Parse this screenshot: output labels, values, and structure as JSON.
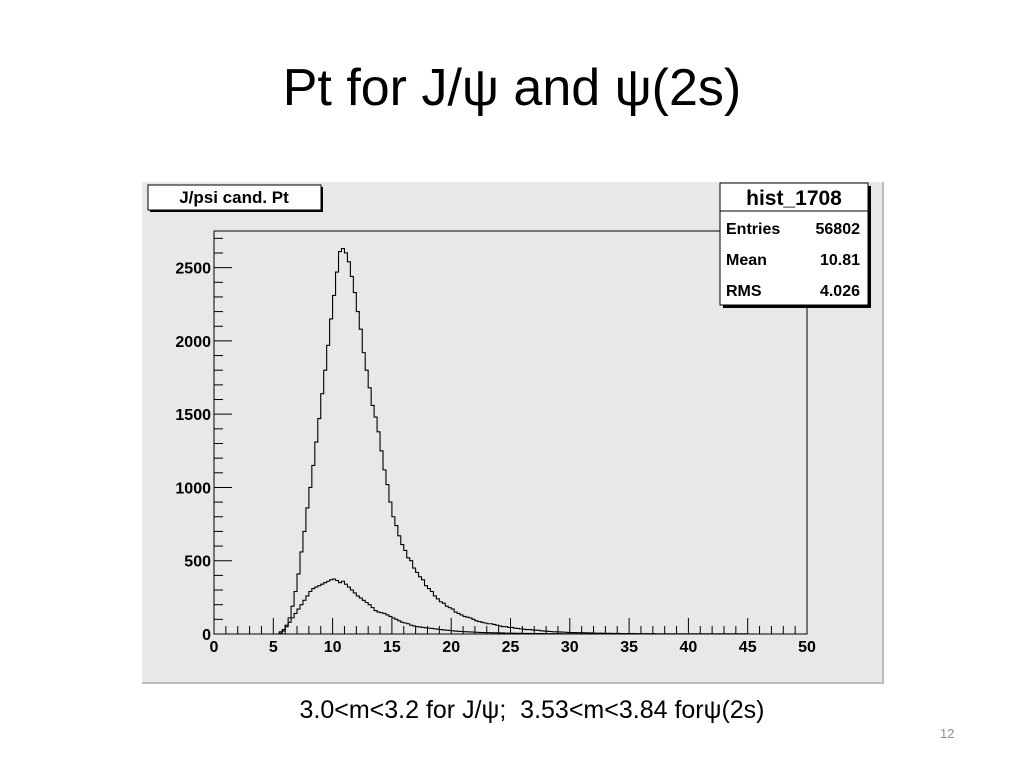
{
  "slide": {
    "title": "Pt  for J/ψ and ψ(2s)",
    "caption_part1": "3.0<m<3.2 for J/ψ;",
    "caption_part2": "  3.53<m<3.84 forψ(2s)",
    "page_number": "12"
  },
  "chart_data": {
    "type": "histogram",
    "title": "J/psi cand. Pt",
    "xlabel": "",
    "ylabel": "",
    "xlim": [
      0,
      50
    ],
    "ylim": [
      0,
      2750
    ],
    "x_ticks": [
      0,
      5,
      10,
      15,
      20,
      25,
      30,
      35,
      40,
      45,
      50
    ],
    "y_ticks": [
      0,
      500,
      1000,
      1500,
      2000,
      2500
    ],
    "grid": false,
    "stats_box": {
      "name": "hist_1708",
      "rows": [
        {
          "label": "Entries",
          "value": "56802"
        },
        {
          "label": "Mean",
          "value": "10.81"
        },
        {
          "label": "RMS",
          "value": "4.026"
        }
      ]
    },
    "series": [
      {
        "bin_width": 0.25,
        "x_start": 0,
        "values": [
          0,
          0,
          0,
          0,
          0,
          0,
          0,
          0,
          0,
          0,
          0,
          0,
          0,
          0,
          0,
          0,
          0,
          0,
          0,
          0,
          0,
          0,
          15,
          30,
          60,
          110,
          190,
          290,
          410,
          560,
          700,
          860,
          1000,
          1150,
          1310,
          1470,
          1640,
          1800,
          1970,
          2150,
          2310,
          2470,
          2610,
          2630,
          2600,
          2540,
          2440,
          2330,
          2200,
          2080,
          1920,
          1800,
          1680,
          1560,
          1480,
          1380,
          1250,
          1120,
          1020,
          900,
          800,
          740,
          670,
          610,
          570,
          520,
          500,
          450,
          420,
          390,
          370,
          330,
          310,
          290,
          260,
          240,
          220,
          210,
          190,
          180,
          170,
          150,
          140,
          130,
          120,
          115,
          110,
          100,
          90,
          85,
          80,
          75,
          70,
          70,
          65,
          60,
          55,
          50,
          50,
          45,
          45,
          40,
          38,
          35,
          33,
          30,
          30,
          28,
          26,
          25,
          22,
          20,
          18,
          17,
          15,
          15,
          14,
          13,
          12,
          11,
          10,
          10,
          9,
          9,
          8,
          8,
          7,
          7,
          6,
          6,
          6,
          5,
          5,
          5,
          4,
          4,
          4,
          3,
          3,
          3,
          3,
          3,
          2,
          2,
          2,
          2,
          2,
          2,
          2,
          1,
          1,
          1,
          1,
          1,
          1,
          1,
          1,
          1,
          1,
          1,
          1,
          1,
          1,
          1,
          1,
          1,
          1,
          1,
          1,
          1,
          1,
          1,
          1,
          1,
          1,
          1,
          1,
          1,
          1,
          1,
          0,
          0,
          0,
          0,
          0,
          0,
          0,
          0,
          0,
          0,
          0,
          0,
          0,
          0,
          0,
          0,
          0,
          0,
          0,
          0
        ]
      },
      {
        "bin_width": 0.25,
        "x_start": 0,
        "values": [
          0,
          0,
          0,
          0,
          0,
          0,
          0,
          0,
          0,
          0,
          0,
          0,
          0,
          0,
          0,
          0,
          0,
          0,
          0,
          0,
          0,
          0,
          5,
          20,
          50,
          80,
          110,
          140,
          170,
          200,
          230,
          260,
          290,
          310,
          320,
          330,
          340,
          350,
          360,
          370,
          375,
          365,
          350,
          360,
          340,
          320,
          300,
          280,
          260,
          245,
          230,
          215,
          200,
          180,
          160,
          150,
          145,
          140,
          130,
          120,
          110,
          100,
          90,
          80,
          75,
          70,
          60,
          55,
          50,
          48,
          45,
          42,
          40,
          38,
          35,
          33,
          30,
          28,
          26,
          24,
          22,
          20,
          18,
          17,
          16,
          15,
          14,
          13,
          12,
          11,
          10,
          10,
          9,
          9,
          8,
          8,
          7,
          7,
          6,
          6,
          6,
          5,
          5,
          5,
          4,
          4,
          4,
          3,
          3,
          3,
          3,
          2,
          2,
          2,
          2,
          2,
          2,
          1,
          1,
          1,
          1,
          1,
          1,
          1,
          1,
          1,
          1,
          1,
          1,
          1,
          0,
          0,
          0,
          0,
          0,
          0,
          0,
          0,
          0,
          0,
          0,
          0,
          0,
          0,
          0,
          0,
          0,
          0,
          0,
          0,
          0,
          0,
          0,
          0,
          0,
          0,
          0,
          0,
          0,
          0,
          0,
          0,
          0,
          0,
          0,
          0,
          0,
          0,
          0,
          0,
          0,
          0,
          0,
          0,
          0,
          0,
          0,
          0,
          0,
          0,
          0,
          0,
          0,
          0,
          0,
          0,
          0,
          0,
          0,
          0,
          0,
          0,
          0,
          0,
          0,
          0,
          0,
          0,
          0,
          0
        ]
      }
    ]
  }
}
